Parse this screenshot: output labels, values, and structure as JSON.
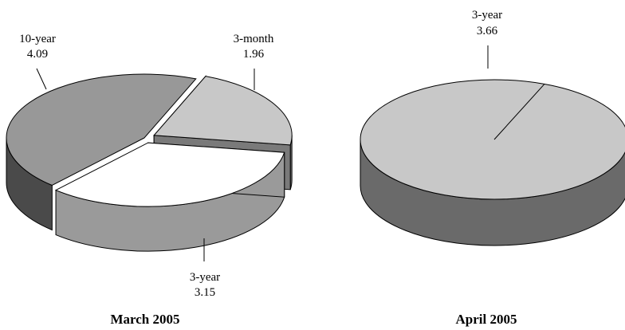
{
  "chart_data": [
    {
      "type": "pie",
      "title": "March 2005",
      "slices": [
        {
          "label": "3-month",
          "value": 1.96,
          "color": "#c8c8c8",
          "side_color": "#7a7a7a",
          "exploded": true
        },
        {
          "label": "3-year",
          "value": 3.15,
          "color": "#ffffff",
          "side_color": "#9a9a9a",
          "exploded": true
        },
        {
          "label": "10-year",
          "value": 4.09,
          "color": "#989898",
          "side_color": "#4a4a4a",
          "exploded": false
        }
      ]
    },
    {
      "type": "pie",
      "title": "April 2005",
      "slices": [
        {
          "label": "3-year",
          "value": 3.66,
          "color": "#c8c8c8",
          "side_color": "#6a6a6a",
          "exploded": false
        }
      ]
    }
  ]
}
